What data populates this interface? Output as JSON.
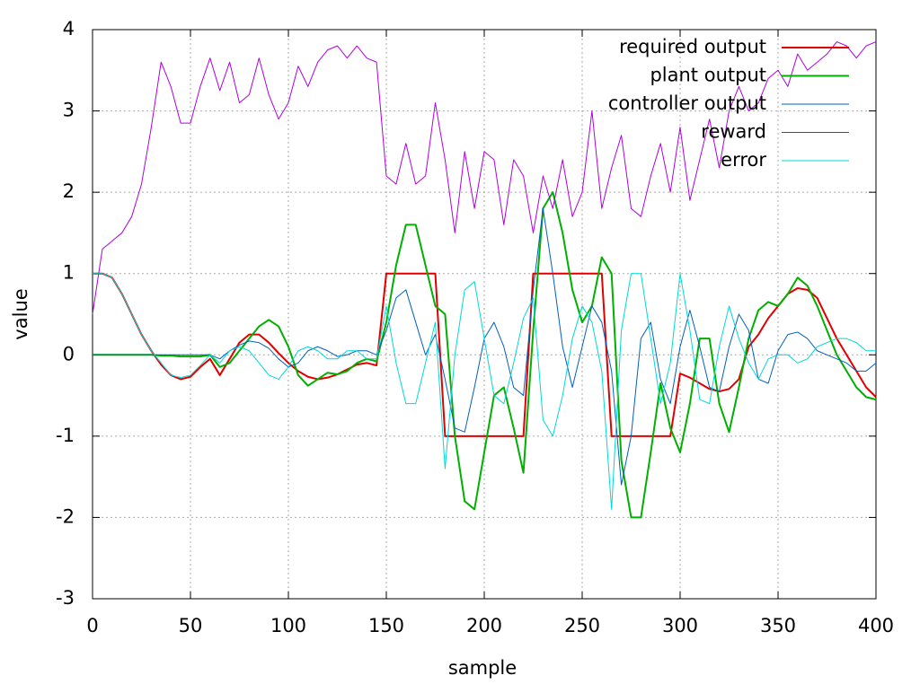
{
  "chart_data": {
    "type": "line",
    "xlabel": "sample",
    "ylabel": "value",
    "xlim": [
      0,
      400
    ],
    "ylim": [
      -3,
      4
    ],
    "xticks": [
      0,
      50,
      100,
      150,
      200,
      250,
      300,
      350,
      400
    ],
    "yticks": [
      -3,
      -2,
      -1,
      0,
      1,
      2,
      3,
      4
    ],
    "grid": true,
    "legend": "top-right",
    "x": [
      0,
      5,
      10,
      15,
      20,
      25,
      30,
      35,
      40,
      45,
      50,
      55,
      60,
      65,
      70,
      75,
      80,
      85,
      90,
      95,
      100,
      105,
      110,
      115,
      120,
      125,
      130,
      135,
      140,
      145,
      150,
      155,
      160,
      165,
      170,
      175,
      180,
      185,
      190,
      195,
      200,
      205,
      210,
      215,
      220,
      225,
      230,
      235,
      240,
      245,
      250,
      255,
      260,
      265,
      270,
      275,
      280,
      285,
      290,
      295,
      300,
      305,
      310,
      315,
      320,
      325,
      330,
      335,
      340,
      345,
      350,
      355,
      360,
      365,
      370,
      375,
      380,
      385,
      390,
      395,
      400
    ],
    "series": [
      {
        "name": "required output",
        "color": "#e00000",
        "width": 2,
        "values": [
          1,
          1,
          0.95,
          0.75,
          0.5,
          0.25,
          0.05,
          -0.12,
          -0.25,
          -0.3,
          -0.27,
          -0.15,
          -0.05,
          -0.25,
          -0.05,
          0.15,
          0.25,
          0.25,
          0.15,
          0.02,
          -0.1,
          -0.2,
          -0.27,
          -0.3,
          -0.28,
          -0.24,
          -0.18,
          -0.12,
          -0.1,
          -0.13,
          1,
          1,
          1,
          1,
          1,
          1,
          -1,
          -1,
          -1,
          -1,
          -1,
          -1,
          -1,
          -1,
          -1,
          1,
          1,
          1,
          1,
          1,
          1,
          1,
          1,
          -1,
          -1,
          -1,
          -1,
          -1,
          -1,
          -1,
          -0.23,
          -0.28,
          -0.35,
          -0.42,
          -0.45,
          -0.42,
          -0.3,
          0.1,
          0.25,
          0.45,
          0.6,
          0.75,
          0.82,
          0.8,
          0.7,
          0.45,
          0.2,
          0,
          -0.2,
          -0.4,
          -0.52
        ]
      },
      {
        "name": "plant output",
        "color": "#00b000",
        "width": 2,
        "values": [
          0,
          0,
          0,
          0,
          0,
          0,
          0,
          -0.01,
          -0.01,
          -0.02,
          -0.02,
          -0.02,
          0,
          -0.15,
          -0.1,
          0.05,
          0.2,
          0.35,
          0.43,
          0.35,
          0.1,
          -0.25,
          -0.38,
          -0.3,
          -0.22,
          -0.24,
          -0.2,
          -0.1,
          -0.05,
          -0.08,
          0.4,
          1.1,
          1.6,
          1.6,
          1.1,
          0.6,
          0.5,
          -1,
          -1.8,
          -1.9,
          -1.2,
          -0.5,
          -0.4,
          -0.9,
          -1.45,
          0.3,
          1.8,
          2,
          1.5,
          0.8,
          0.4,
          0.6,
          1.2,
          1,
          -1.3,
          -2,
          -2,
          -1.2,
          -0.35,
          -0.9,
          -1.2,
          -0.6,
          0.2,
          0.2,
          -0.6,
          -0.95,
          -0.4,
          0.2,
          0.55,
          0.65,
          0.6,
          0.75,
          0.95,
          0.85,
          0.6,
          0.3,
          0,
          -0.2,
          -0.4,
          -0.52,
          -0.55
        ]
      },
      {
        "name": "controller output",
        "color": "#0060c0",
        "width": 1,
        "values": [
          0,
          0,
          0,
          0,
          0,
          0,
          0,
          0,
          0,
          0,
          0,
          0,
          0,
          -0.05,
          0.05,
          0.12,
          0.17,
          0.15,
          0.08,
          -0.05,
          -0.15,
          -0.1,
          0.05,
          0.1,
          0.05,
          -0.02,
          0,
          0.05,
          0.05,
          0,
          0.3,
          0.7,
          0.8,
          0.4,
          0,
          0.25,
          -0.3,
          -0.9,
          -0.95,
          -0.4,
          0.2,
          0.4,
          0.1,
          -0.4,
          -0.5,
          0.8,
          1.8,
          1,
          0.1,
          -0.4,
          0.1,
          0.6,
          0.4,
          -0.2,
          -1.6,
          -1,
          0.2,
          0.4,
          -0.3,
          -0.6,
          0.1,
          0.55,
          0.1,
          -0.4,
          -0.45,
          0.1,
          0.5,
          0.3,
          -0.3,
          -0.35,
          0.05,
          0.25,
          0.28,
          0.2,
          0.05,
          0,
          -0.05,
          -0.1,
          -0.2,
          -0.2,
          -0.1
        ]
      },
      {
        "name": "reward",
        "color": "#b000e0",
        "width": 1,
        "values": [
          0.5,
          1.3,
          1.4,
          1.5,
          1.7,
          2.1,
          2.8,
          3.6,
          3.3,
          2.85,
          2.85,
          3.3,
          3.65,
          3.25,
          3.6,
          3.1,
          3.2,
          3.65,
          3.2,
          2.9,
          3.1,
          3.55,
          3.3,
          3.6,
          3.75,
          3.8,
          3.65,
          3.8,
          3.65,
          3.6,
          2.2,
          2.1,
          2.6,
          2.1,
          2.2,
          3.1,
          2.4,
          1.5,
          2.5,
          1.8,
          2.5,
          2.4,
          1.6,
          2.4,
          2.2,
          1.5,
          2.2,
          1.8,
          2.4,
          1.7,
          2,
          3,
          1.8,
          2.3,
          2.7,
          1.8,
          1.7,
          2.2,
          2.6,
          2,
          2.8,
          1.9,
          2.4,
          2.9,
          2.3,
          3,
          3.3,
          3,
          3.1,
          3.4,
          3.5,
          3.3,
          3.7,
          3.5,
          3.6,
          3.7,
          3.85,
          3.8,
          3.65,
          3.8,
          3.85
        ]
      },
      {
        "name": "error",
        "color": "#00d8d8",
        "width": 1,
        "values": [
          1,
          1,
          0.95,
          0.75,
          0.5,
          0.25,
          0.05,
          -0.1,
          -0.25,
          -0.28,
          -0.25,
          -0.13,
          0,
          -0.1,
          0.05,
          0.1,
          0.05,
          -0.1,
          -0.25,
          -0.3,
          -0.15,
          0.05,
          0.1,
          0.05,
          -0.05,
          -0.05,
          0.05,
          0.05,
          -0.05,
          -0.05,
          0.6,
          -0.1,
          -0.6,
          -0.6,
          -0.1,
          0.4,
          -1.4,
          0,
          0.8,
          0.9,
          0.2,
          -0.5,
          -0.6,
          -0.1,
          0.45,
          0.7,
          -0.8,
          -1,
          -0.5,
          0.2,
          0.6,
          0.4,
          -0.2,
          -1.9,
          0.3,
          1,
          1,
          0.2,
          -0.6,
          -0.1,
          1,
          0.3,
          -0.55,
          -0.6,
          0.1,
          0.6,
          0.2,
          -0.1,
          -0.3,
          -0.05,
          0,
          0,
          -0.1,
          -0.05,
          0.1,
          0.15,
          0.2,
          0.2,
          0.15,
          0.05,
          0.05
        ]
      }
    ]
  }
}
